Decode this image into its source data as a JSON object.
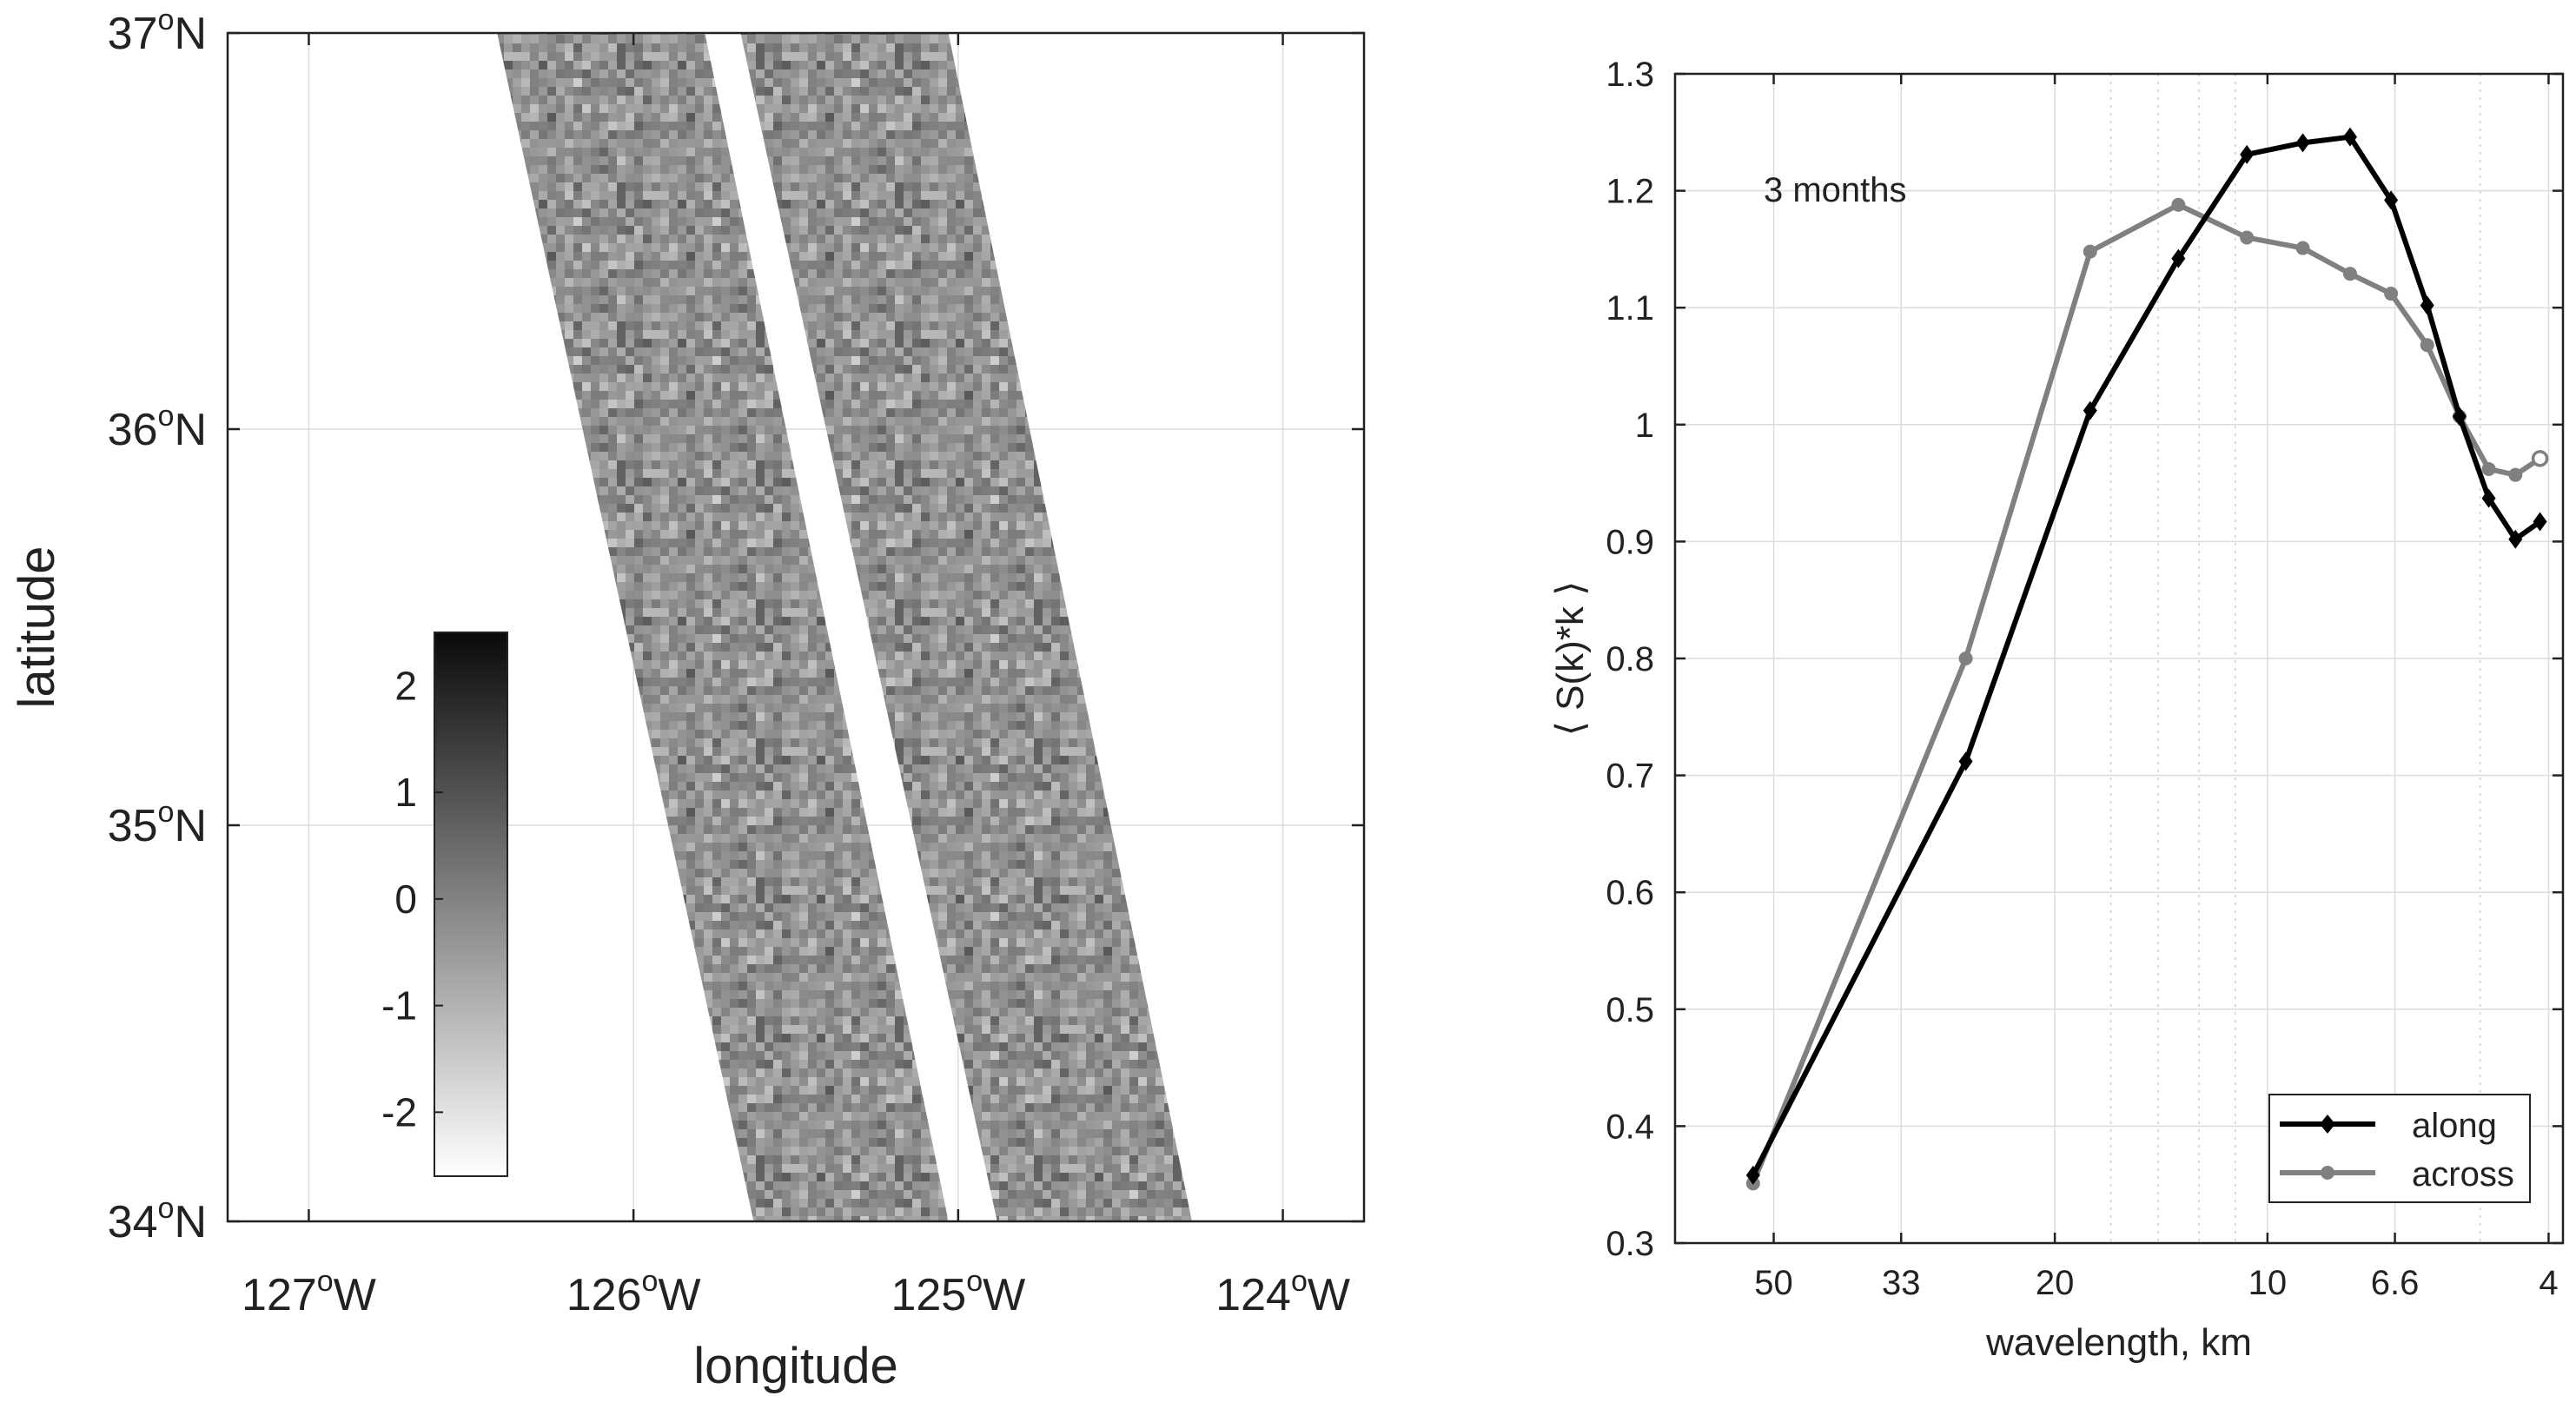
{
  "colors": {
    "along": "#000000",
    "across": "#808080",
    "grid": "#dcdcdc",
    "axis": "#222222",
    "swath_mid": "#9a9a9a"
  },
  "chart_data": [
    {
      "type": "heatmap",
      "title": "",
      "xlabel": "longitude",
      "ylabel": "latitude",
      "xlim": [
        -127.25,
        -123.75
      ],
      "ylim": [
        34,
        37
      ],
      "x_ticks": [
        {
          "value": -127,
          "deg": "127",
          "unit": "o",
          "hemi": "W"
        },
        {
          "value": -126,
          "deg": "126",
          "unit": "o",
          "hemi": "W"
        },
        {
          "value": -125,
          "deg": "125",
          "unit": "o",
          "hemi": "W"
        },
        {
          "value": -124,
          "deg": "124",
          "unit": "o",
          "hemi": "W"
        }
      ],
      "y_ticks": [
        {
          "value": 34,
          "deg": "34",
          "unit": "o",
          "hemi": "N"
        },
        {
          "value": 35,
          "deg": "35",
          "unit": "o",
          "hemi": "N"
        },
        {
          "value": 36,
          "deg": "36",
          "unit": "o",
          "hemi": "N"
        },
        {
          "value": 37,
          "deg": "37",
          "unit": "o",
          "hemi": "N"
        }
      ],
      "swaths": [
        {
          "name": "left-swath",
          "top_lon": [
            -126.42,
            -125.78
          ],
          "bottom_lon": [
            -125.63,
            -125.03
          ]
        },
        {
          "name": "right-swath",
          "top_lon": [
            -125.67,
            -125.03
          ],
          "bottom_lon": [
            -124.88,
            -124.28
          ]
        }
      ],
      "colorbar": {
        "range": [
          -2.6,
          2.5
        ],
        "ticks": [
          {
            "value": 2,
            "label": "2"
          },
          {
            "value": 1,
            "label": "1"
          },
          {
            "value": 0,
            "label": "0"
          },
          {
            "value": -1,
            "label": "-1"
          },
          {
            "value": -2,
            "label": "-2"
          }
        ]
      }
    },
    {
      "type": "line",
      "title": "",
      "annotation": "3 months",
      "xlabel": "wavelength, km",
      "ylabel": "⟨ S(k)*k ⟩",
      "xscale": "log (wavenumber, 1/km)",
      "xlim": [
        0.0145,
        0.262
      ],
      "ylim": [
        0.3,
        1.3
      ],
      "x_ticks": [
        {
          "value": 0.02,
          "label": "50"
        },
        {
          "value": 0.0303,
          "label": "33"
        },
        {
          "value": 0.05,
          "label": "20"
        },
        {
          "value": 0.1,
          "label": "10"
        },
        {
          "value": 0.1515,
          "label": "6.6"
        },
        {
          "value": 0.25,
          "label": "4"
        }
      ],
      "minor_ticks": [
        0.06,
        0.07,
        0.08,
        0.09,
        0.2,
        0.3
      ],
      "y_ticks": [
        {
          "value": 0.3,
          "label": "0.3"
        },
        {
          "value": 0.4,
          "label": "0.4"
        },
        {
          "value": 0.5,
          "label": "0.5"
        },
        {
          "value": 0.6,
          "label": "0.6"
        },
        {
          "value": 0.7,
          "label": "0.7"
        },
        {
          "value": 0.8,
          "label": "0.8"
        },
        {
          "value": 0.9,
          "label": "0.9"
        },
        {
          "value": 1.0,
          "label": "1"
        },
        {
          "value": 1.1,
          "label": "1.1"
        },
        {
          "value": 1.2,
          "label": "1.2"
        },
        {
          "value": 1.3,
          "label": "1.3"
        }
      ],
      "legend_position": "bottom-right",
      "series": [
        {
          "name": "along",
          "marker": "diamond",
          "x": [
            0.0187,
            0.0374,
            0.0561,
            0.0748,
            0.0935,
            0.1122,
            0.1309,
            0.1496,
            0.1683,
            0.187,
            0.2057,
            0.2244,
            0.2431
          ],
          "y": [
            0.358,
            0.712,
            1.012,
            1.142,
            1.231,
            1.241,
            1.246,
            1.192,
            1.102,
            1.007,
            0.937,
            0.902,
            0.917
          ]
        },
        {
          "name": "across",
          "marker": "circle",
          "x": [
            0.0187,
            0.0374,
            0.0561,
            0.0748,
            0.0935,
            0.1122,
            0.1309,
            0.1496,
            0.1683,
            0.187,
            0.2057,
            0.2244,
            0.2431
          ],
          "y": [
            0.351,
            0.8,
            1.148,
            1.188,
            1.16,
            1.151,
            1.129,
            1.112,
            1.068,
            1.007,
            0.962,
            0.957,
            0.971
          ]
        }
      ]
    }
  ]
}
